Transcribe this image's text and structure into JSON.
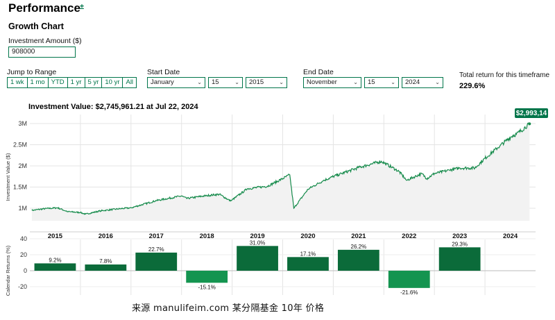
{
  "header": {
    "title": "Performance",
    "title_icon": "±",
    "subtitle": "Growth Chart"
  },
  "investment": {
    "label": "Investment Amount ($)",
    "value": "908000"
  },
  "jump": {
    "label": "Jump to Range",
    "buttons": [
      "1 wk",
      "1 mo",
      "YTD",
      "1 yr",
      "5 yr",
      "10 yr",
      "All"
    ]
  },
  "start_date": {
    "label": "Start Date",
    "month": "January",
    "day": "15",
    "year": "2015"
  },
  "end_date": {
    "label": "End Date",
    "month": "November",
    "day": "15",
    "year": "2024"
  },
  "total_return": {
    "label": "Total return for this timeframe",
    "value": "229.6%"
  },
  "caption": "来源 manulifeim.com   某分隔基金 10年 价格",
  "chart_data": [
    {
      "type": "line",
      "title": "Investment Value: $2,745,961.21 at Jul 22, 2024",
      "ylabel": "Investment Value ($)",
      "yticks": [
        "1M",
        "1.5M",
        "2M",
        "2.5M",
        "3M"
      ],
      "ylim": [
        900000,
        3150000
      ],
      "end_label": "$2,993,14",
      "colors": {
        "line": "#148a4a",
        "area": "#f2f2f2",
        "badge": "#00754a"
      },
      "x": [
        2015.04,
        2015.3,
        2015.55,
        2015.75,
        2016.0,
        2016.1,
        2016.4,
        2016.8,
        2017.0,
        2017.5,
        2018.0,
        2018.1,
        2018.5,
        2018.75,
        2018.97,
        2019.3,
        2019.7,
        2020.0,
        2020.14,
        2020.22,
        2020.5,
        2020.8,
        2021.0,
        2021.5,
        2021.95,
        2022.3,
        2022.45,
        2022.75,
        2022.85,
        2023.0,
        2023.3,
        2023.5,
        2023.8,
        2024.0,
        2024.3,
        2024.55,
        2024.62,
        2024.88
      ],
      "values": [
        950000,
        990000,
        1010000,
        920000,
        900000,
        860000,
        940000,
        990000,
        1010000,
        1180000,
        1290000,
        1230000,
        1300000,
        1330000,
        1170000,
        1460000,
        1520000,
        1700000,
        1790000,
        1000000,
        1450000,
        1650000,
        1750000,
        1960000,
        2110000,
        1870000,
        1660000,
        1820000,
        1700000,
        1820000,
        1900000,
        1950000,
        1950000,
        2180000,
        2480000,
        2720000,
        2745961,
        2993140
      ],
      "start_year": "2015",
      "end_year": "2024"
    },
    {
      "type": "bar",
      "ylabel": "Calendar Returns (%)",
      "yticks": [
        "40",
        "20",
        "0",
        "-20"
      ],
      "ylim": [
        -30,
        40
      ],
      "categories": [
        "2015",
        "2016",
        "2017",
        "2018",
        "2019",
        "2020",
        "2021",
        "2022",
        "2023",
        "2024"
      ],
      "values": [
        9.2,
        7.8,
        22.7,
        -15.1,
        31.0,
        17.1,
        26.2,
        -21.6,
        29.3,
        null
      ],
      "labels": [
        "9.2%",
        "7.8%",
        "22.7%",
        "-15.1%",
        "31.0%",
        "17.1%",
        "26.2%",
        "-21.6%",
        "29.3%",
        ""
      ],
      "colors": {
        "positive": "#0b6b3a",
        "negative": "#149450"
      }
    }
  ]
}
